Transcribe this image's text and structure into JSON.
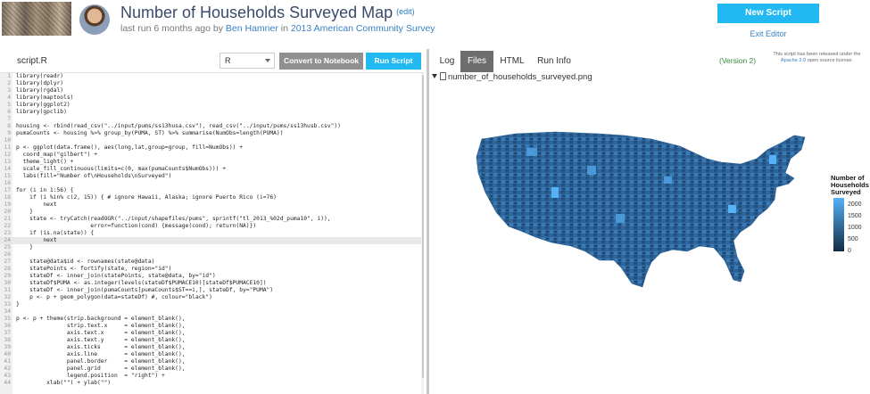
{
  "header": {
    "title": "Number of Households Surveyed Map",
    "edit": "(edit)",
    "subtitle_pre": "last run 6 months ago by ",
    "author": "Ben Hamner",
    "subtitle_mid": " in ",
    "dataset": "2013 American Community Survey",
    "new_script": "New Script",
    "exit_editor": "Exit Editor"
  },
  "editor": {
    "filename": "script.R",
    "language": "R",
    "convert_label": "Convert to Notebook",
    "run_label": "Run Script",
    "active_line": 24,
    "lines": [
      "library(readr)",
      "library(dplyr)",
      "library(rgdal)",
      "library(maptools)",
      "library(ggplot2)",
      "library(gpclib)",
      "",
      "housing <- rbind(read_csv(\"../input/pums/ss13husa.csv\"), read_csv(\"../input/pums/ss13husb.csv\"))",
      "pumaCounts <- housing %>% group_by(PUMA, ST) %>% summarise(NumObs=length(PUMA))",
      "",
      "p <- ggplot(data.frame(), aes(long,lat,group=group, fill=NumObs)) +",
      "  coord_map(\"gilbert\") +",
      "  theme_light() +",
      "  scale_fill_continuous(limits=c(0, max(pumaCounts$NumObs))) +",
      "  labs(fill=\"Number of\\nHouseholds\\nSurveyed\")",
      "",
      "for (i in 1:56) {",
      "    if (i %in% c(2, 15)) { # ignore Hawaii, Alaska; ignore Puerto Rico (i=76)",
      "        next",
      "    }",
      "    state <- tryCatch(readOGR(\"../input/shapefiles/pums\", sprintf(\"tl_2013_%02d_puma10\", i)),",
      "                      error=function(cond) {message(cond); return(NA)})",
      "    if (is.na(state)) {",
      "        next",
      "    }",
      "",
      "    state@data$id <- rownames(state@data)",
      "    statePoints <- fortify(state, region=\"id\")",
      "    stateDf <- inner_join(statePoints, state@data, by=\"id\")",
      "    stateDf$PUMA <- as.integer(levels(stateDf$PUMACE10)[stateDf$PUMACE10])",
      "    stateDf <- inner_join(pumaCounts[pumaCounts$ST==i,], stateDf, by=\"PUMA\")",
      "    p <- p + geom_polygon(data=stateDf) #, colour=\"black\")",
      "}",
      "",
      "p <- p + theme(strip.background = element_blank(),",
      "               strip.text.x     = element_blank(),",
      "               axis.text.x      = element_blank(),",
      "               axis.text.y      = element_blank(),",
      "               axis.ticks       = element_blank(),",
      "               axis.line        = element_blank(),",
      "               panel.border     = element_blank(),",
      "               panel.grid       = element_blank(),",
      "               legend.position  = \"right\") +",
      "         xlab(\"\") + ylab(\"\")"
    ]
  },
  "output": {
    "tabs": [
      "Log",
      "Files",
      "HTML",
      "Run Info"
    ],
    "active_tab": "Files",
    "version": "(Version 2)",
    "license_pre": "This script has been released under the ",
    "license_link": "Apache 2.0",
    "license_post": " open source license.",
    "file_name": "number_of_households_surveyed.png",
    "legend_title_1": "Number of",
    "legend_title_2": "Households",
    "legend_title_3": "Surveyed",
    "legend_ticks": [
      "2000",
      "1500",
      "1000",
      "500",
      "0"
    ],
    "legend_values": [
      2000,
      1500,
      1000,
      500,
      0
    ],
    "legend_max": 2300,
    "colors": {
      "accent": "#22b9f2",
      "low": "#132b43",
      "high": "#56b1f7",
      "map_fill": "#2f6aa0"
    }
  }
}
